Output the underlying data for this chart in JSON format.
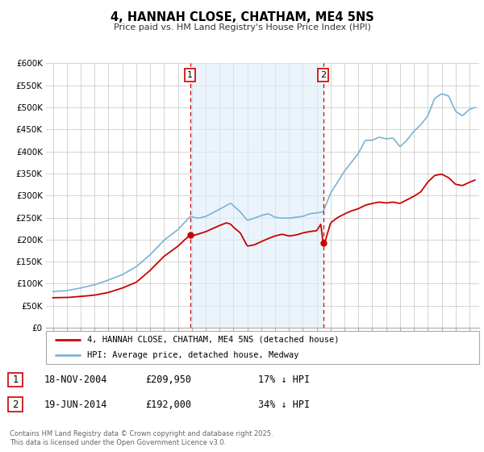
{
  "title": "4, HANNAH CLOSE, CHATHAM, ME4 5NS",
  "subtitle": "Price paid vs. HM Land Registry's House Price Index (HPI)",
  "background_color": "#ffffff",
  "plot_bg_color": "#ffffff",
  "grid_color": "#cccccc",
  "hpi_line_color": "#7ab3d4",
  "price_line_color": "#cc0000",
  "shade_color": "#ddeeff",
  "sale1_date_label": "18-NOV-2004",
  "sale1_price": 209950,
  "sale1_hpi_pct": "17% ↓ HPI",
  "sale1_x": 2004.88,
  "sale1_y": 209950,
  "sale2_date_label": "19-JUN-2014",
  "sale2_price": 192000,
  "sale2_hpi_pct": "34% ↓ HPI",
  "sale2_x": 2014.46,
  "sale2_y": 192000,
  "legend_label1": "4, HANNAH CLOSE, CHATHAM, ME4 5NS (detached house)",
  "legend_label2": "HPI: Average price, detached house, Medway",
  "footnote": "Contains HM Land Registry data © Crown copyright and database right 2025.\nThis data is licensed under the Open Government Licence v3.0.",
  "ylim": [
    0,
    600000
  ],
  "yticks": [
    0,
    50000,
    100000,
    150000,
    200000,
    250000,
    300000,
    350000,
    400000,
    450000,
    500000,
    550000,
    600000
  ],
  "ytick_labels": [
    "£0",
    "£50K",
    "£100K",
    "£150K",
    "£200K",
    "£250K",
    "£300K",
    "£350K",
    "£400K",
    "£450K",
    "£500K",
    "£550K",
    "£600K"
  ],
  "xmin": 1994.5,
  "xmax": 2025.7
}
